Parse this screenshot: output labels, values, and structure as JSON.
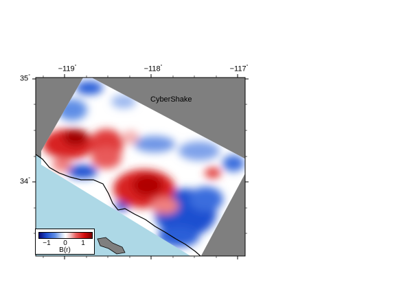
{
  "map": {
    "title": "CyberShake",
    "lon_ticks": [
      "−119",
      "−118",
      "−117"
    ],
    "lat_ticks": [
      "35",
      "34"
    ],
    "degree_symbol": "°"
  },
  "legend": {
    "ticks": [
      "−1",
      "0",
      "1"
    ],
    "title": "B(r)"
  },
  "colors": {
    "land_outside": "#7f7f7f",
    "ocean": "#add8e6",
    "positive": "#d30a0a",
    "negative": "#1e4fd0",
    "neutral": "#ffffff"
  }
}
